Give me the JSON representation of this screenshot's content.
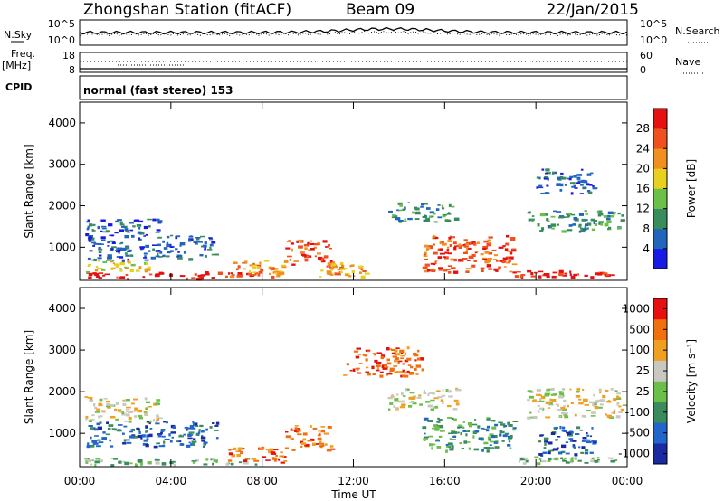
{
  "header": {
    "title": "Zhongshan Station (fitACF)",
    "beam": "Beam 09",
    "date": "22/Jan/2015"
  },
  "top_panels": {
    "nsky_label": "N.Sky",
    "nsearch_label": "N.Search",
    "freq_label_1": "Freq.",
    "freq_label_2": "[MHz]",
    "nave_label": "Nave",
    "cpid_label": "CPID",
    "left_ticks_noise": [
      "10^5",
      "10^0"
    ],
    "right_ticks_noise": [
      "10^5",
      "10^0"
    ],
    "left_ticks_freq": [
      "18",
      "8"
    ],
    "right_ticks_nave": [
      "60",
      "0"
    ],
    "cpid_text": "normal (fast stereo) 153"
  },
  "chart_data": [
    {
      "type": "heatmap",
      "panel": "power",
      "ylabel": "Slant Range [km]",
      "xlabel": "",
      "x_ticks": [
        "00:00",
        "04:00",
        "08:00",
        "12:00",
        "16:00",
        "20:00",
        "00:00"
      ],
      "y_ticks": [
        "1000",
        "2000",
        "3000",
        "4000"
      ],
      "ylim": [
        200,
        4500
      ],
      "xlim_hours": [
        0,
        24
      ],
      "colorbar_label": "Power [dB]",
      "colorbar_ticks": [
        "4",
        "8",
        "12",
        "16",
        "20",
        "24",
        "28"
      ],
      "colors": [
        "#1a1ae6",
        "#2266bb",
        "#3a8c5c",
        "#6cc04a",
        "#e8d020",
        "#f09020",
        "#f05020",
        "#e61010"
      ],
      "regions": [
        {
          "t0": 0.2,
          "t1": 8.0,
          "r0": 250,
          "r1": 420,
          "level": 7
        },
        {
          "t0": 0.2,
          "t1": 3.0,
          "r0": 420,
          "r1": 700,
          "level": 4
        },
        {
          "t0": 0.2,
          "t1": 3.5,
          "r0": 1300,
          "r1": 1700,
          "level": 1
        },
        {
          "t0": 0.3,
          "t1": 6.0,
          "r0": 700,
          "r1": 1300,
          "level": 1
        },
        {
          "t0": 6.5,
          "t1": 9.0,
          "r0": 300,
          "r1": 700,
          "level": 5
        },
        {
          "t0": 9.0,
          "t1": 11.0,
          "r0": 600,
          "r1": 1200,
          "level": 6
        },
        {
          "t0": 10.5,
          "t1": 12.5,
          "r0": 300,
          "r1": 700,
          "level": 5
        },
        {
          "t0": 13.5,
          "t1": 16.5,
          "r0": 1600,
          "r1": 2100,
          "level": 2
        },
        {
          "t0": 15.0,
          "t1": 19.0,
          "r0": 400,
          "r1": 1300,
          "level": 6
        },
        {
          "t0": 19.0,
          "t1": 23.5,
          "r0": 300,
          "r1": 450,
          "level": 7
        },
        {
          "t0": 19.5,
          "t1": 23.8,
          "r0": 1400,
          "r1": 1900,
          "level": 2
        },
        {
          "t0": 20.0,
          "t1": 22.5,
          "r0": 2300,
          "r1": 2900,
          "level": 1
        }
      ]
    },
    {
      "type": "heatmap",
      "panel": "velocity",
      "ylabel": "Slant Range [km]",
      "xlabel": "Time UT",
      "x_ticks": [
        "00:00",
        "04:00",
        "08:00",
        "12:00",
        "16:00",
        "20:00",
        "00:00"
      ],
      "y_ticks": [
        "1000",
        "2000",
        "3000",
        "4000"
      ],
      "ylim": [
        200,
        4500
      ],
      "xlim_hours": [
        0,
        24
      ],
      "colorbar_label": "Velocity [m s⁻¹]",
      "colorbar_ticks": [
        "1000",
        "500",
        "100",
        "25",
        "-25",
        "-100",
        "-500",
        "-1000"
      ],
      "colors": [
        "#1a2aa0",
        "#2266cc",
        "#3a8c5c",
        "#6cc04a",
        "#c8c8c0",
        "#f0a020",
        "#f07010",
        "#e61010"
      ],
      "regions": [
        {
          "t0": 0.2,
          "t1": 8.0,
          "r0": 250,
          "r1": 420,
          "level": 3
        },
        {
          "t0": 0.2,
          "t1": 3.5,
          "r0": 1300,
          "r1": 1900,
          "level": 4
        },
        {
          "t0": 0.3,
          "t1": 6.0,
          "r0": 700,
          "r1": 1300,
          "level": 1
        },
        {
          "t0": 6.5,
          "t1": 9.0,
          "r0": 300,
          "r1": 700,
          "level": 6
        },
        {
          "t0": 9.0,
          "t1": 11.0,
          "r0": 600,
          "r1": 1200,
          "level": 6
        },
        {
          "t0": 11.5,
          "t1": 15.0,
          "r0": 2400,
          "r1": 3100,
          "level": 6
        },
        {
          "t0": 13.5,
          "t1": 16.5,
          "r0": 1600,
          "r1": 2100,
          "level": 4
        },
        {
          "t0": 15.0,
          "t1": 19.0,
          "r0": 600,
          "r1": 1400,
          "level": 2
        },
        {
          "t0": 19.0,
          "t1": 23.5,
          "r0": 300,
          "r1": 450,
          "level": 3
        },
        {
          "t0": 19.5,
          "t1": 23.8,
          "r0": 1400,
          "r1": 2100,
          "level": 4
        },
        {
          "t0": 20.0,
          "t1": 22.5,
          "r0": 500,
          "r1": 1200,
          "level": 1
        }
      ]
    }
  ]
}
